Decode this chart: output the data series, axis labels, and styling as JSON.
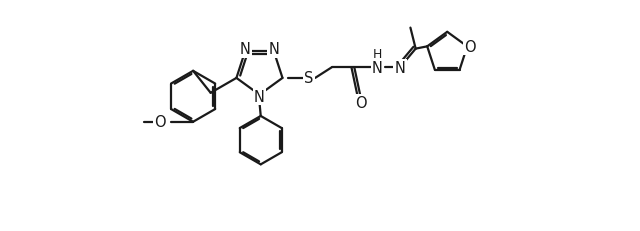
{
  "figure_width": 6.4,
  "figure_height": 2.32,
  "dpi": 100,
  "bg_color": "#ffffff",
  "line_color": "#1a1a1a",
  "line_width": 1.6,
  "font_size": 10.5,
  "xlim": [
    0.0,
    10.0
  ],
  "ylim": [
    0.0,
    3.6
  ]
}
